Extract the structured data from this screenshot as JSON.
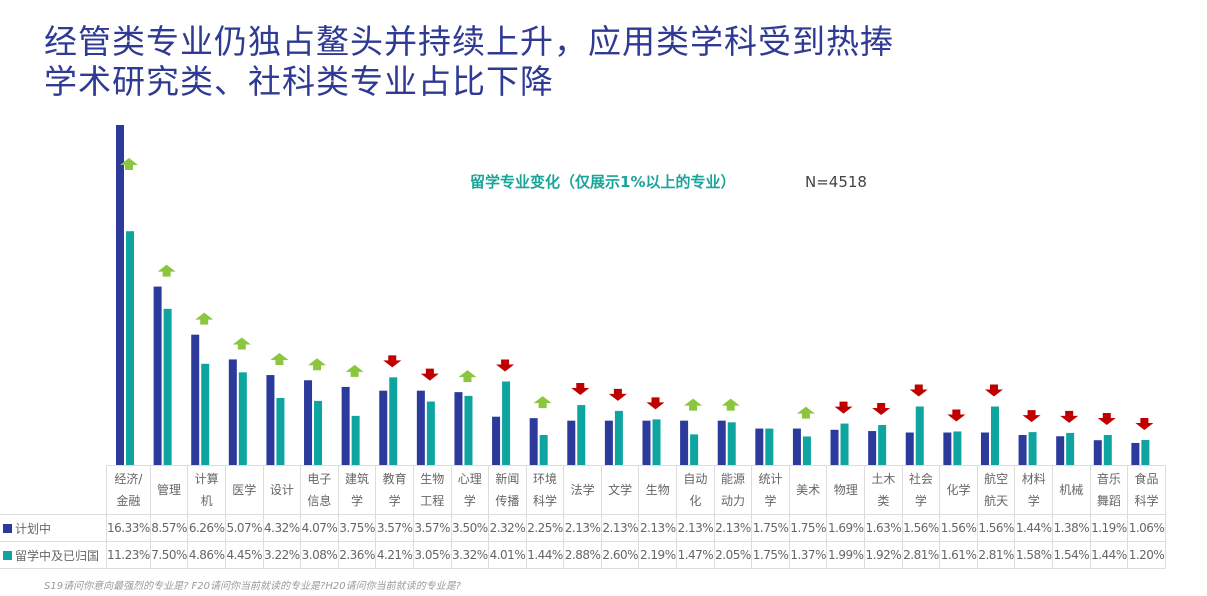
{
  "title_lines": [
    "经管类专业仍独占鳌头并持续上升，应用类学科受到热捧",
    "学术研究类、社科类专业占比下降"
  ],
  "chart_data": {
    "type": "bar",
    "subtitle": "留学专业变化（仅展示1%以上的专业）",
    "sample": "N=4518",
    "categories": [
      "经济/金融",
      "管理",
      "计算机",
      "医学",
      "设计",
      "电子信息",
      "建筑学",
      "教育学",
      "生物工程",
      "心理学",
      "新闻传播",
      "环境科学",
      "法学",
      "文学",
      "生物",
      "自动化",
      "能源动力",
      "统计学",
      "美术",
      "物理",
      "土木类",
      "社会学",
      "化学",
      "航空航天",
      "材料学",
      "机械",
      "音乐舞蹈",
      "食品科学"
    ],
    "series": [
      {
        "name": "计划中",
        "color": "#2b3a9b",
        "values": [
          16.33,
          8.57,
          6.26,
          5.07,
          4.32,
          4.07,
          3.75,
          3.57,
          3.57,
          3.5,
          2.32,
          2.25,
          2.13,
          2.13,
          2.13,
          2.13,
          2.13,
          1.75,
          1.75,
          1.69,
          1.63,
          1.56,
          1.56,
          1.56,
          1.44,
          1.38,
          1.19,
          1.06
        ]
      },
      {
        "name": "留学中及已归国",
        "color": "#0ea5a0",
        "values": [
          11.23,
          7.5,
          4.86,
          4.45,
          3.22,
          3.08,
          2.36,
          4.21,
          3.05,
          3.32,
          4.01,
          1.44,
          2.88,
          2.6,
          2.19,
          1.47,
          2.05,
          1.75,
          1.37,
          1.99,
          1.92,
          2.81,
          1.61,
          2.81,
          1.58,
          1.54,
          1.44,
          1.2
        ]
      }
    ],
    "trend": [
      "up",
      "up",
      "up",
      "up",
      "up",
      "up",
      "up",
      "down",
      "down",
      "up",
      "down",
      "up",
      "down",
      "down",
      "down",
      "up",
      "up",
      "none",
      "up",
      "down",
      "down",
      "down",
      "down",
      "down",
      "down",
      "down",
      "down",
      "down"
    ],
    "trend_colors": {
      "up": "#8cc63f",
      "down": "#c00000"
    },
    "value_format": "percent"
  },
  "footnote": "S19请问你意向最强烈的专业是? F20请问你当前就读的专业是?H20请问你当前就读的专业是?"
}
